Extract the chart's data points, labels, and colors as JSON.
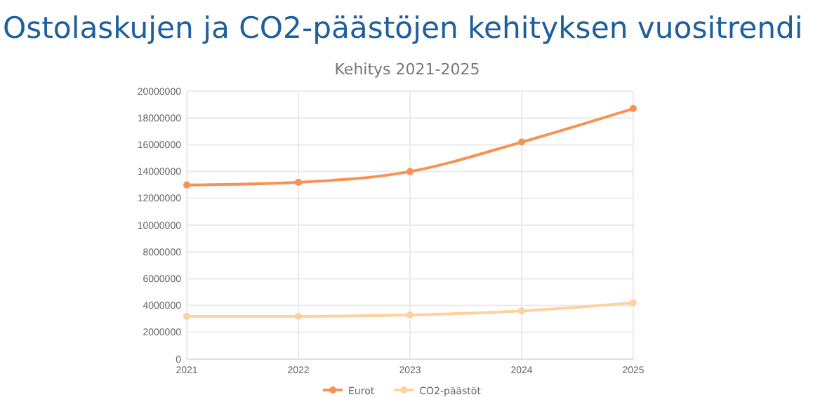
{
  "chart_data": {
    "type": "line",
    "title": "Ostolaskujen ja CO2-päästöjen kehityksen vuositrendi",
    "subtitle": "Kehitys 2021-2025",
    "categories": [
      "2021",
      "2022",
      "2023",
      "2024",
      "2025"
    ],
    "series": [
      {
        "name": "Eurot",
        "color": "#f79254",
        "values": [
          13000000,
          13200000,
          14000000,
          16200000,
          18700000
        ]
      },
      {
        "name": "CO2-päästöt",
        "color": "#fdd29e",
        "values": [
          3200000,
          3200000,
          3300000,
          3600000,
          4200000
        ]
      }
    ],
    "ylim": [
      0,
      20000000
    ],
    "yticks": [
      0,
      2000000,
      4000000,
      6000000,
      8000000,
      10000000,
      12000000,
      14000000,
      16000000,
      18000000,
      20000000
    ],
    "grid": true,
    "legend": "bottom",
    "marker": "circle",
    "line_style": "solid"
  }
}
